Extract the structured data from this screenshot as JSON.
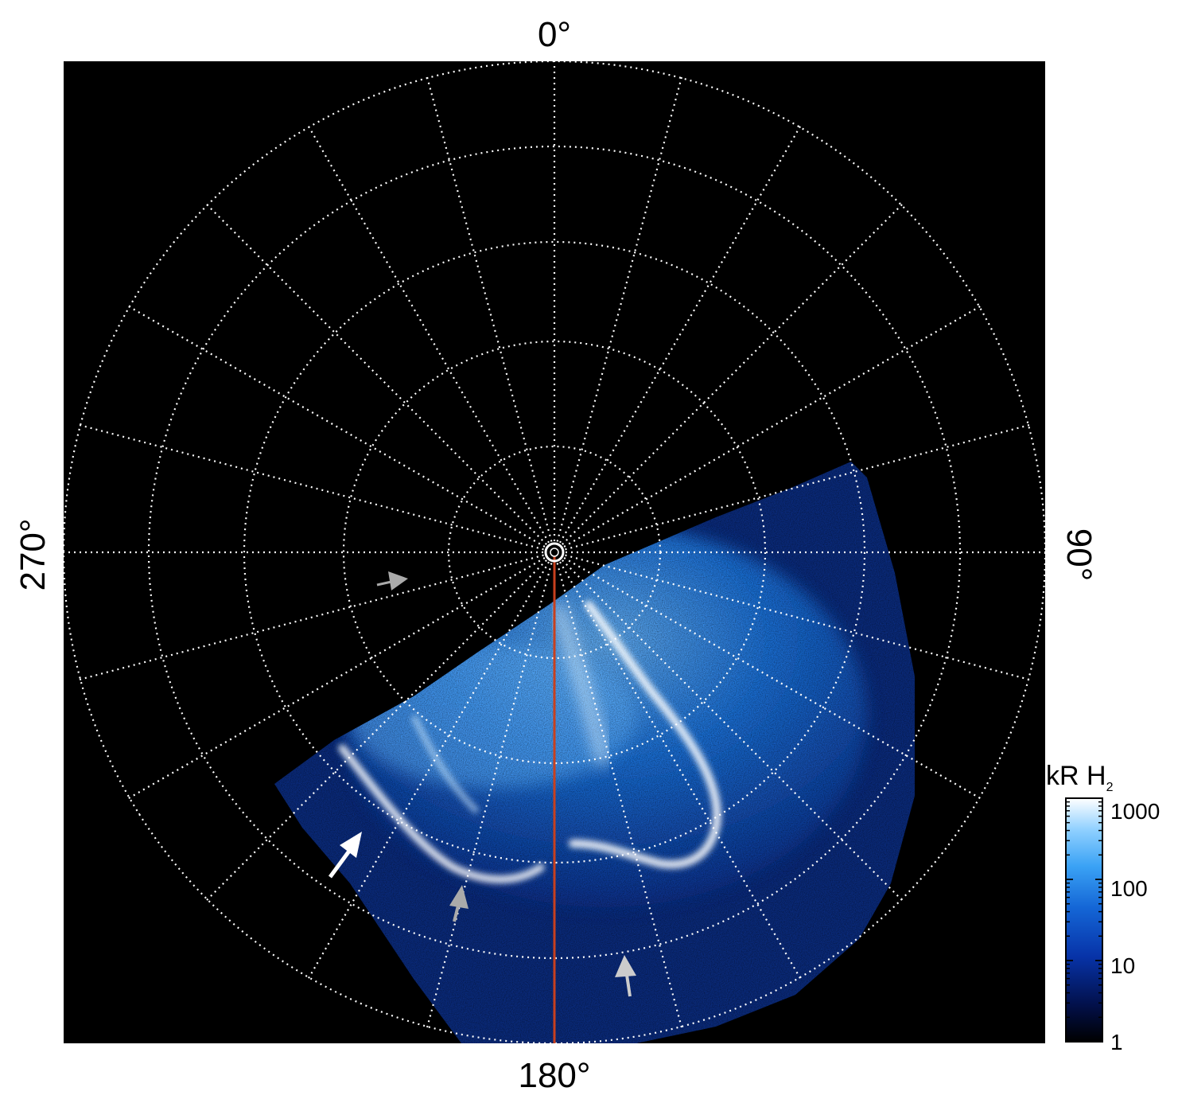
{
  "figure": {
    "labels": {
      "top": "0°",
      "bottom": "180°",
      "left": "270°",
      "right": "90°"
    },
    "colorbar": {
      "title_main": "kR H",
      "title_sub": "2",
      "ticks": [
        "1000",
        "100",
        "10",
        "1"
      ],
      "scale": "log",
      "range": [
        1,
        1000
      ],
      "colors": [
        "#000000",
        "#02104a",
        "#0733a8",
        "#1466d6",
        "#3aa2f5",
        "#8fd0ff",
        "#ffffff"
      ]
    },
    "grid": {
      "color": "#ffffff",
      "style": "dotted"
    },
    "meridian_line_color": "#c8401e",
    "arrow_colors": {
      "white": "#ffffff",
      "gray": "#aaaaaa"
    }
  }
}
